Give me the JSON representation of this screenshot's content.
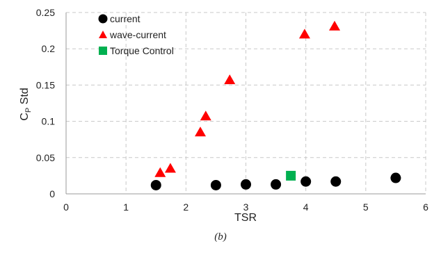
{
  "caption": "(b)",
  "chart_data": {
    "type": "scatter",
    "xlabel": "TSR",
    "ylabel": "C_P Std",
    "ylabel_main": "C",
    "ylabel_sub": "P",
    "ylabel_rest": " Std",
    "xlim": [
      0,
      6
    ],
    "ylim": [
      0,
      0.25
    ],
    "xticks": [
      0,
      1,
      2,
      3,
      4,
      5,
      6
    ],
    "yticks": [
      0,
      0.05,
      0.1,
      0.15,
      0.2,
      0.25
    ],
    "xtick_labels": [
      "0",
      "1",
      "2",
      "3",
      "4",
      "5",
      "6"
    ],
    "ytick_labels": [
      "0",
      "0.05",
      "0.1",
      "0.15",
      "0.2",
      "0.25"
    ],
    "grid": true,
    "legend_position": "top-left",
    "series": [
      {
        "name": "current",
        "marker": "circle",
        "color": "#000000",
        "x": [
          1.5,
          2.5,
          3.0,
          3.5,
          4.0,
          4.5,
          5.5
        ],
        "y": [
          0.012,
          0.012,
          0.013,
          0.013,
          0.017,
          0.017,
          0.022
        ]
      },
      {
        "name": "wave-current",
        "marker": "triangle",
        "color": "#ff0000",
        "x": [
          1.57,
          1.74,
          2.24,
          2.33,
          2.73,
          3.98,
          4.48
        ],
        "y": [
          0.029,
          0.035,
          0.085,
          0.107,
          0.157,
          0.22,
          0.231
        ]
      },
      {
        "name": "Torque Control",
        "marker": "square",
        "color": "#00b050",
        "x": [
          3.75
        ],
        "y": [
          0.025
        ]
      }
    ]
  }
}
